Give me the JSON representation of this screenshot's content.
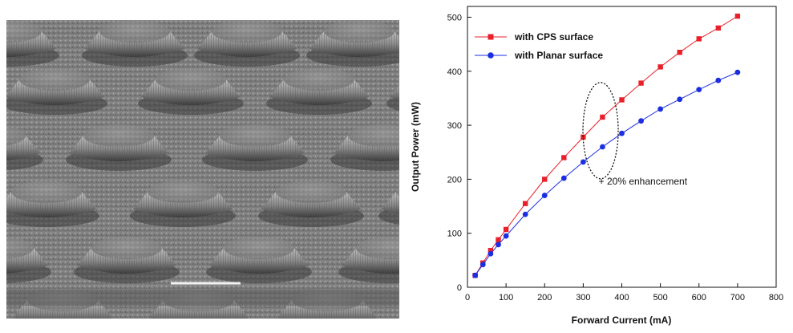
{
  "sem_image": {
    "description_icon": "sem-micrograph-domes"
  },
  "chart_data": {
    "type": "line",
    "xlabel": "Forward Current (mA)",
    "ylabel": "Output Power (mW)",
    "xlim": [
      0,
      800
    ],
    "ylim": [
      0,
      520
    ],
    "xticks": [
      0,
      100,
      200,
      300,
      400,
      500,
      600,
      700,
      800
    ],
    "yticks": [
      0,
      100,
      200,
      300,
      400,
      500
    ],
    "grid": false,
    "legend_placement": "top-left",
    "series": [
      {
        "name": "with CPS surface",
        "color": "#e8202a",
        "marker": "square",
        "x": [
          20,
          40,
          60,
          80,
          100,
          150,
          200,
          250,
          300,
          350,
          400,
          450,
          500,
          550,
          600,
          650,
          700
        ],
        "y": [
          22,
          45,
          68,
          88,
          107,
          155,
          200,
          240,
          278,
          315,
          347,
          378,
          408,
          435,
          460,
          480,
          502
        ]
      },
      {
        "name": "with Planar surface",
        "color": "#1c2fe0",
        "marker": "circle",
        "x": [
          20,
          40,
          60,
          80,
          100,
          150,
          200,
          250,
          300,
          350,
          400,
          450,
          500,
          550,
          600,
          650,
          700
        ],
        "y": [
          22,
          42,
          62,
          79,
          95,
          135,
          170,
          202,
          232,
          260,
          285,
          308,
          330,
          348,
          366,
          383,
          398
        ]
      }
    ],
    "annotation": {
      "text": "+ 20% enhancement",
      "ellipse_center": [
        345,
        290
      ],
      "ellipse_rx": 22,
      "ellipse_ry": 60
    }
  }
}
